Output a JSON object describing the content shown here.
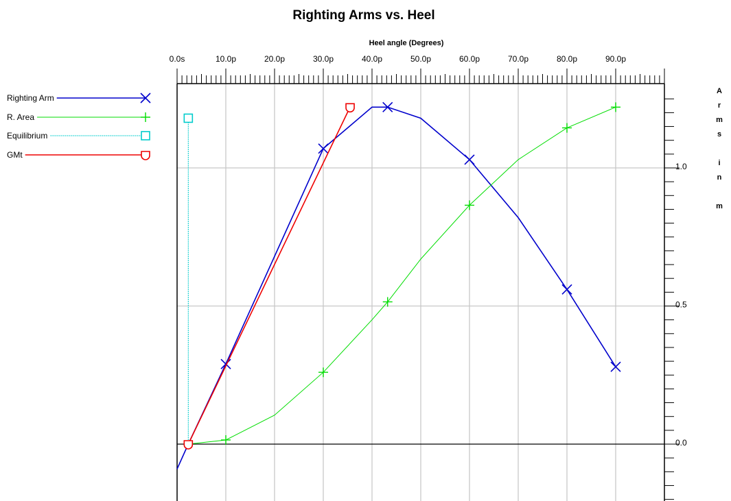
{
  "chart_data": {
    "type": "line",
    "title": "Righting Arms vs. Heel",
    "xlabel": "Heel angle (Degrees)",
    "ylabel": "Arms in m",
    "xlim": [
      0,
      100
    ],
    "ylim": [
      -0.2,
      1.3
    ],
    "x_ticks": [
      {
        "value": 0,
        "label": "0.0s"
      },
      {
        "value": 10,
        "label": "10.0p"
      },
      {
        "value": 20,
        "label": "20.0p"
      },
      {
        "value": 30,
        "label": "30.0p"
      },
      {
        "value": 40,
        "label": "40.0p"
      },
      {
        "value": 50,
        "label": "50.0p"
      },
      {
        "value": 60,
        "label": "60.0p"
      },
      {
        "value": 70,
        "label": "70.0p"
      },
      {
        "value": 80,
        "label": "80.0p"
      },
      {
        "value": 90,
        "label": "90.0p"
      }
    ],
    "y_ticks": [
      {
        "value": 0.0,
        "label": "0.0"
      },
      {
        "value": 0.5,
        "label": "0.5"
      },
      {
        "value": 1.0,
        "label": "1.0"
      }
    ],
    "grid": true,
    "legend_position": "left",
    "series": [
      {
        "name": "Righting Arm",
        "color": "#0000cc",
        "marker": "x",
        "points": [
          [
            0,
            -0.09
          ],
          [
            2.3,
            0.0
          ],
          [
            10,
            0.29
          ],
          [
            20,
            0.68
          ],
          [
            30,
            1.07
          ],
          [
            40,
            1.22
          ],
          [
            43.2,
            1.22
          ],
          [
            50,
            1.18
          ],
          [
            60,
            1.03
          ],
          [
            70,
            0.82
          ],
          [
            80,
            0.56
          ],
          [
            90,
            0.28
          ]
        ],
        "marker_points": [
          [
            10,
            0.29
          ],
          [
            30,
            1.07
          ],
          [
            43.2,
            1.22
          ],
          [
            60,
            1.03
          ],
          [
            80,
            0.56
          ],
          [
            90,
            0.28
          ]
        ]
      },
      {
        "name": "R. Area",
        "color": "#00dd00",
        "marker": "+",
        "points": [
          [
            2.3,
            0.0
          ],
          [
            10,
            0.015
          ],
          [
            20,
            0.105
          ],
          [
            30,
            0.26
          ],
          [
            40,
            0.45
          ],
          [
            43.2,
            0.515
          ],
          [
            50,
            0.67
          ],
          [
            60,
            0.865
          ],
          [
            70,
            1.03
          ],
          [
            80,
            1.145
          ],
          [
            90,
            1.22
          ]
        ],
        "marker_points": [
          [
            10,
            0.015
          ],
          [
            30,
            0.26
          ],
          [
            43.2,
            0.515
          ],
          [
            60,
            0.865
          ],
          [
            80,
            1.145
          ],
          [
            90,
            1.22
          ]
        ]
      },
      {
        "name": "Equilibrium",
        "color": "#00cccc",
        "marker": "square",
        "points": [
          [
            2.3,
            0.0
          ],
          [
            2.3,
            1.18
          ]
        ],
        "marker_points": [
          [
            2.3,
            1.18
          ]
        ]
      },
      {
        "name": "GMt",
        "color": "#ee0000",
        "marker": "o",
        "points": [
          [
            2.3,
            0.0
          ],
          [
            35.5,
            1.22
          ]
        ],
        "marker_points": [
          [
            2.3,
            0.0
          ],
          [
            35.5,
            1.22
          ]
        ]
      }
    ]
  }
}
